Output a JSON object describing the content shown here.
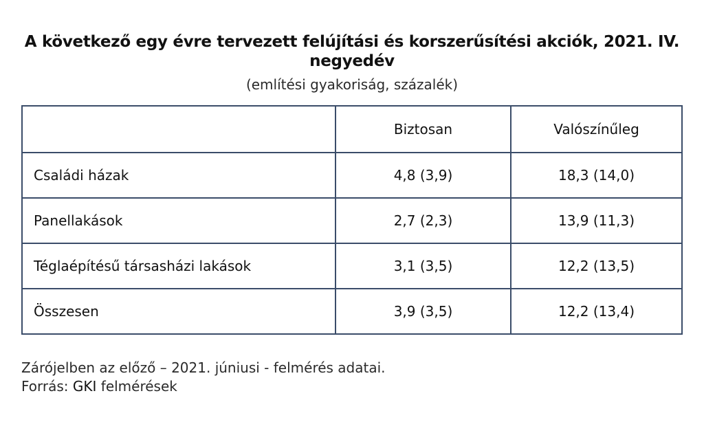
{
  "title_line1": "A következő egy évre tervezett felújítási és korszerűsítési akciók, 2021. IV.",
  "title_line2": "negyedév",
  "subtitle": "(említési gyakoriság, százalék)",
  "chart_data": {
    "type": "table",
    "columns": [
      "",
      "Biztosan",
      "Valószínűleg"
    ],
    "rows": [
      {
        "label": "Családi házak",
        "biztosan": "4,8 (3,9)",
        "valoszinuleg": "18,3 (14,0)"
      },
      {
        "label": "Panellakások",
        "biztosan": "2,7 (2,3)",
        "valoszinuleg": "13,9 (11,3)"
      },
      {
        "label": "Téglaépítésű társasházi lakások",
        "biztosan": "3,1 (3,5)",
        "valoszinuleg": "12,2 (13,5)"
      },
      {
        "label": "Összesen",
        "biztosan": "3,9 (3,5)",
        "valoszinuleg": "12,2 (13,4)"
      }
    ]
  },
  "note": "Zárójelben az előző – 2021. júniusi - felmérés adatai.",
  "source_prefix": "Forrás: ",
  "source_org": "GKI",
  "source_suffix": " felmérések",
  "colors": {
    "table_border": "#3a4c69"
  }
}
